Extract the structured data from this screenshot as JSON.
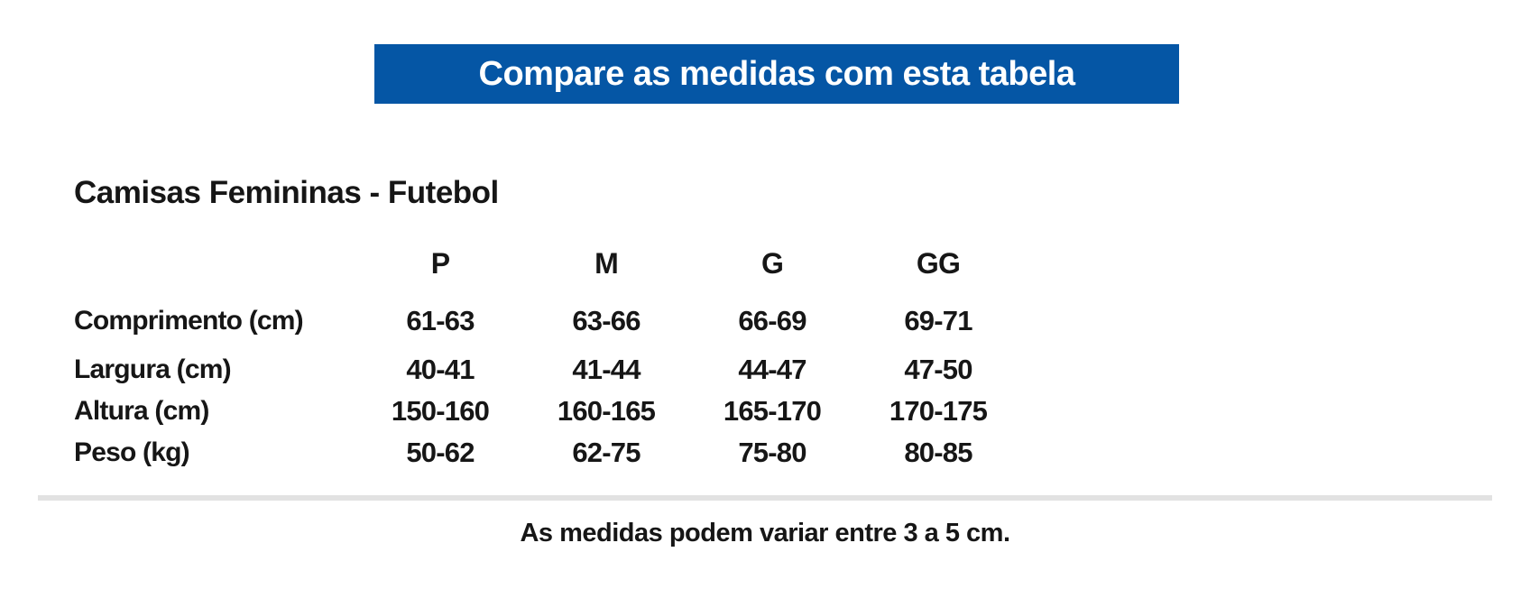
{
  "banner": {
    "label": "Compare as medidas com esta tabela",
    "bg_color": "#0556A5",
    "text_color": "#FFFFFF"
  },
  "table": {
    "title": "Camisas Femininas - Futebol",
    "size_headers": [
      "P",
      "M",
      "G",
      "GG"
    ],
    "rows": [
      {
        "label": "Comprimento (cm)",
        "values": [
          "61-63",
          "63-66",
          "66-69",
          "69-71"
        ]
      },
      {
        "label": "Largura (cm)",
        "values": [
          "40-41",
          "41-44",
          "44-47",
          "47-50"
        ]
      },
      {
        "label": "Altura (cm)",
        "values": [
          "150-160",
          "160-165",
          "165-170",
          "170-175"
        ]
      },
      {
        "label": "Peso (kg)",
        "values": [
          "50-62",
          "62-75",
          "75-80",
          "80-85"
        ]
      }
    ]
  },
  "footer": {
    "note": "As medidas podem variar entre 3 a 5 cm."
  }
}
